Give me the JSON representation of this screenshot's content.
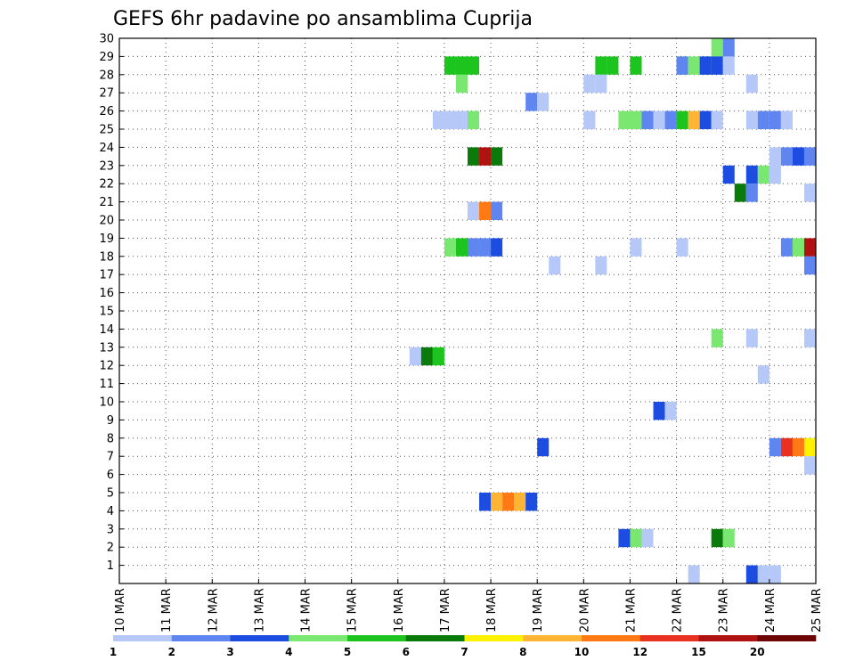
{
  "chart_data": {
    "type": "heatmap",
    "title": "GEFS 6hr padavine po ansamblima Cuprija",
    "xlabel": "",
    "ylabel": "",
    "x_range": [
      0,
      15
    ],
    "y_range": [
      0,
      30
    ],
    "y_ticks": [
      "1",
      "2",
      "3",
      "4",
      "5",
      "6",
      "7",
      "8",
      "9",
      "10",
      "11",
      "12",
      "13",
      "14",
      "15",
      "16",
      "17",
      "18",
      "19",
      "20",
      "21",
      "22",
      "23",
      "24",
      "25",
      "26",
      "27",
      "28",
      "29",
      "30"
    ],
    "x_ticks": [
      "10 MAR",
      "11 MAR",
      "12 MAR",
      "13 MAR",
      "14 MAR",
      "15 MAR",
      "16 MAR",
      "17 MAR",
      "18 MAR",
      "19 MAR",
      "20 MAR",
      "21 MAR",
      "22 MAR",
      "23 MAR",
      "24 MAR",
      "25 MAR"
    ],
    "grid": true,
    "legend": {
      "position": "bottom",
      "colors": [
        "#b5c8f7",
        "#5f86f0",
        "#1c4de0",
        "#7ae870",
        "#1ec41e",
        "#0a7a0a",
        "#fff200",
        "#ffb533",
        "#ff7a14",
        "#e8311e",
        "#b01212",
        "#6e0606"
      ],
      "labels": [
        "1",
        "2",
        "3",
        "4",
        "5",
        "6",
        "7",
        "8",
        "10",
        "12",
        "15",
        "20"
      ]
    },
    "step_days": 0.25,
    "cells": [
      [
        7.0,
        29,
        "#1ec41e"
      ],
      [
        7.25,
        29,
        "#1ec41e"
      ],
      [
        7.5,
        29,
        "#1ec41e"
      ],
      [
        10.25,
        29,
        "#1ec41e"
      ],
      [
        10.5,
        29,
        "#1ec41e"
      ],
      [
        11.0,
        29,
        "#1ec41e"
      ],
      [
        12.0,
        29,
        "#1ec41e"
      ],
      [
        12.5,
        29,
        "#1ec41e"
      ],
      [
        12.75,
        30,
        "#7ae870"
      ],
      [
        13.0,
        30,
        "#5f86f0"
      ],
      [
        12.0,
        29,
        "#5f86f0"
      ],
      [
        12.25,
        29,
        "#7ae870"
      ],
      [
        12.5,
        29,
        "#1c4de0"
      ],
      [
        12.75,
        29,
        "#1c4de0"
      ],
      [
        13.0,
        29,
        "#b5c8f7"
      ],
      [
        7.25,
        28,
        "#7ae870"
      ],
      [
        10.0,
        28,
        "#b5c8f7"
      ],
      [
        10.25,
        28,
        "#b5c8f7"
      ],
      [
        13.5,
        28,
        "#b5c8f7"
      ],
      [
        8.75,
        27,
        "#5f86f0"
      ],
      [
        9.0,
        27,
        "#b5c8f7"
      ],
      [
        6.75,
        26,
        "#b5c8f7"
      ],
      [
        7.0,
        26,
        "#b5c8f7"
      ],
      [
        7.25,
        26,
        "#b5c8f7"
      ],
      [
        7.5,
        26,
        "#7ae870"
      ],
      [
        10.0,
        26,
        "#b5c8f7"
      ],
      [
        10.75,
        26,
        "#7ae870"
      ],
      [
        11.0,
        26,
        "#7ae870"
      ],
      [
        11.25,
        26,
        "#5f86f0"
      ],
      [
        11.5,
        26,
        "#b5c8f7"
      ],
      [
        11.75,
        26,
        "#5f86f0"
      ],
      [
        12.0,
        26,
        "#1ec41e"
      ],
      [
        12.25,
        26,
        "#ffb533"
      ],
      [
        12.5,
        26,
        "#1c4de0"
      ],
      [
        12.75,
        26,
        "#b5c8f7"
      ],
      [
        13.5,
        26,
        "#b5c8f7"
      ],
      [
        13.75,
        26,
        "#5f86f0"
      ],
      [
        14.0,
        26,
        "#5f86f0"
      ],
      [
        14.25,
        26,
        "#b5c8f7"
      ],
      [
        7.5,
        24,
        "#0a7a0a"
      ],
      [
        7.75,
        24,
        "#b01212"
      ],
      [
        8.0,
        24,
        "#0a7a0a"
      ],
      [
        14.0,
        24,
        "#b5c8f7"
      ],
      [
        14.25,
        24,
        "#5f86f0"
      ],
      [
        14.5,
        24,
        "#1c4de0"
      ],
      [
        14.75,
        24,
        "#5f86f0"
      ],
      [
        13.0,
        23,
        "#1c4de0"
      ],
      [
        13.5,
        23,
        "#1c4de0"
      ],
      [
        13.75,
        23,
        "#7ae870"
      ],
      [
        14.0,
        23,
        "#b5c8f7"
      ],
      [
        13.25,
        22,
        "#0a7a0a"
      ],
      [
        13.5,
        22,
        "#5f86f0"
      ],
      [
        14.75,
        22,
        "#b5c8f7"
      ],
      [
        7.5,
        21,
        "#b5c8f7"
      ],
      [
        7.75,
        21,
        "#ff7a14"
      ],
      [
        8.0,
        21,
        "#5f86f0"
      ],
      [
        7.0,
        19,
        "#7ae870"
      ],
      [
        7.25,
        19,
        "#1ec41e"
      ],
      [
        7.5,
        19,
        "#5f86f0"
      ],
      [
        7.75,
        19,
        "#5f86f0"
      ],
      [
        8.0,
        19,
        "#1c4de0"
      ],
      [
        11.0,
        19,
        "#b5c8f7"
      ],
      [
        12.0,
        19,
        "#b5c8f7"
      ],
      [
        14.25,
        19,
        "#5f86f0"
      ],
      [
        14.5,
        19,
        "#7ae870"
      ],
      [
        14.75,
        19,
        "#b01212"
      ],
      [
        9.25,
        18,
        "#b5c8f7"
      ],
      [
        10.25,
        18,
        "#b5c8f7"
      ],
      [
        14.75,
        18,
        "#5f86f0"
      ],
      [
        12.75,
        14,
        "#7ae870"
      ],
      [
        13.5,
        14,
        "#b5c8f7"
      ],
      [
        14.75,
        14,
        "#b5c8f7"
      ],
      [
        6.25,
        13,
        "#b5c8f7"
      ],
      [
        6.5,
        13,
        "#0a7a0a"
      ],
      [
        6.75,
        13,
        "#1ec41e"
      ],
      [
        13.75,
        12,
        "#b5c8f7"
      ],
      [
        11.5,
        10,
        "#1c4de0"
      ],
      [
        11.75,
        10,
        "#b5c8f7"
      ],
      [
        9.0,
        8,
        "#1c4de0"
      ],
      [
        14.0,
        8,
        "#5f86f0"
      ],
      [
        14.25,
        8,
        "#e8311e"
      ],
      [
        14.5,
        8,
        "#ff7a14"
      ],
      [
        14.75,
        8,
        "#fff200"
      ],
      [
        14.75,
        7,
        "#b5c8f7"
      ],
      [
        7.75,
        5,
        "#1c4de0"
      ],
      [
        8.0,
        5,
        "#ffb533"
      ],
      [
        8.25,
        5,
        "#ff7a14"
      ],
      [
        8.5,
        5,
        "#ffb533"
      ],
      [
        8.75,
        5,
        "#1c4de0"
      ],
      [
        10.75,
        3,
        "#1c4de0"
      ],
      [
        11.0,
        3,
        "#7ae870"
      ],
      [
        11.25,
        3,
        "#b5c8f7"
      ],
      [
        12.75,
        3,
        "#0a7a0a"
      ],
      [
        13.0,
        3,
        "#7ae870"
      ],
      [
        12.25,
        1,
        "#b5c8f7"
      ],
      [
        13.5,
        1,
        "#1c4de0"
      ],
      [
        13.75,
        1,
        "#b5c8f7"
      ],
      [
        14.0,
        1,
        "#b5c8f7"
      ]
    ]
  }
}
